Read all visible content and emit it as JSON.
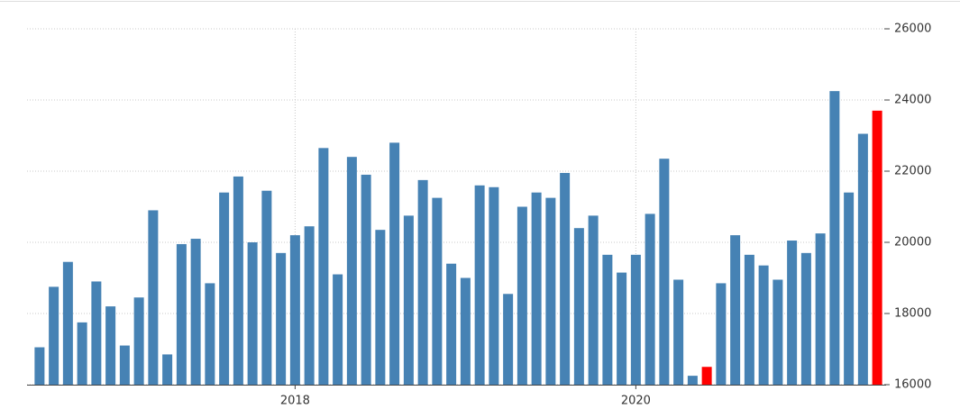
{
  "chart_data": {
    "type": "bar",
    "categories": [
      null,
      null,
      null,
      null,
      null,
      null,
      null,
      null,
      null,
      null,
      null,
      null,
      null,
      null,
      null,
      null,
      null,
      null,
      "2018",
      null,
      null,
      null,
      null,
      null,
      null,
      null,
      null,
      null,
      null,
      null,
      null,
      null,
      null,
      null,
      null,
      null,
      null,
      null,
      null,
      null,
      null,
      null,
      "2020",
      null,
      null,
      null,
      null,
      null,
      null,
      null,
      null,
      null,
      null,
      null,
      null,
      null,
      null,
      null,
      null,
      null
    ],
    "values": [
      17050,
      18750,
      19450,
      17750,
      18900,
      18200,
      17100,
      18450,
      20900,
      16850,
      19950,
      20100,
      18850,
      21400,
      21850,
      20000,
      21450,
      19700,
      20200,
      20450,
      22650,
      19100,
      22400,
      21900,
      20350,
      22800,
      20750,
      21750,
      21250,
      19400,
      19000,
      21600,
      21550,
      18550,
      21000,
      21400,
      21250,
      21950,
      20400,
      20750,
      19650,
      19150,
      19650,
      20800,
      22350,
      18950,
      16250,
      16500,
      18850,
      20200,
      19650,
      19350,
      18950,
      20050,
      19700,
      20250,
      24250,
      21400,
      23050,
      23700
    ],
    "colors": [
      "#4682b4",
      "#4682b4",
      "#4682b4",
      "#4682b4",
      "#4682b4",
      "#4682b4",
      "#4682b4",
      "#4682b4",
      "#4682b4",
      "#4682b4",
      "#4682b4",
      "#4682b4",
      "#4682b4",
      "#4682b4",
      "#4682b4",
      "#4682b4",
      "#4682b4",
      "#4682b4",
      "#4682b4",
      "#4682b4",
      "#4682b4",
      "#4682b4",
      "#4682b4",
      "#4682b4",
      "#4682b4",
      "#4682b4",
      "#4682b4",
      "#4682b4",
      "#4682b4",
      "#4682b4",
      "#4682b4",
      "#4682b4",
      "#4682b4",
      "#4682b4",
      "#4682b4",
      "#4682b4",
      "#4682b4",
      "#4682b4",
      "#4682b4",
      "#4682b4",
      "#4682b4",
      "#4682b4",
      "#4682b4",
      "#4682b4",
      "#4682b4",
      "#4682b4",
      "#4682b4",
      "#ff0000",
      "#4682b4",
      "#4682b4",
      "#4682b4",
      "#4682b4",
      "#4682b4",
      "#4682b4",
      "#4682b4",
      "#4682b4",
      "#4682b4",
      "#4682b4",
      "#4682b4",
      "#ff0000"
    ],
    "ylim": [
      16000,
      26000
    ],
    "yticks": [
      16000,
      18000,
      20000,
      22000,
      24000,
      26000
    ],
    "grid": true
  }
}
